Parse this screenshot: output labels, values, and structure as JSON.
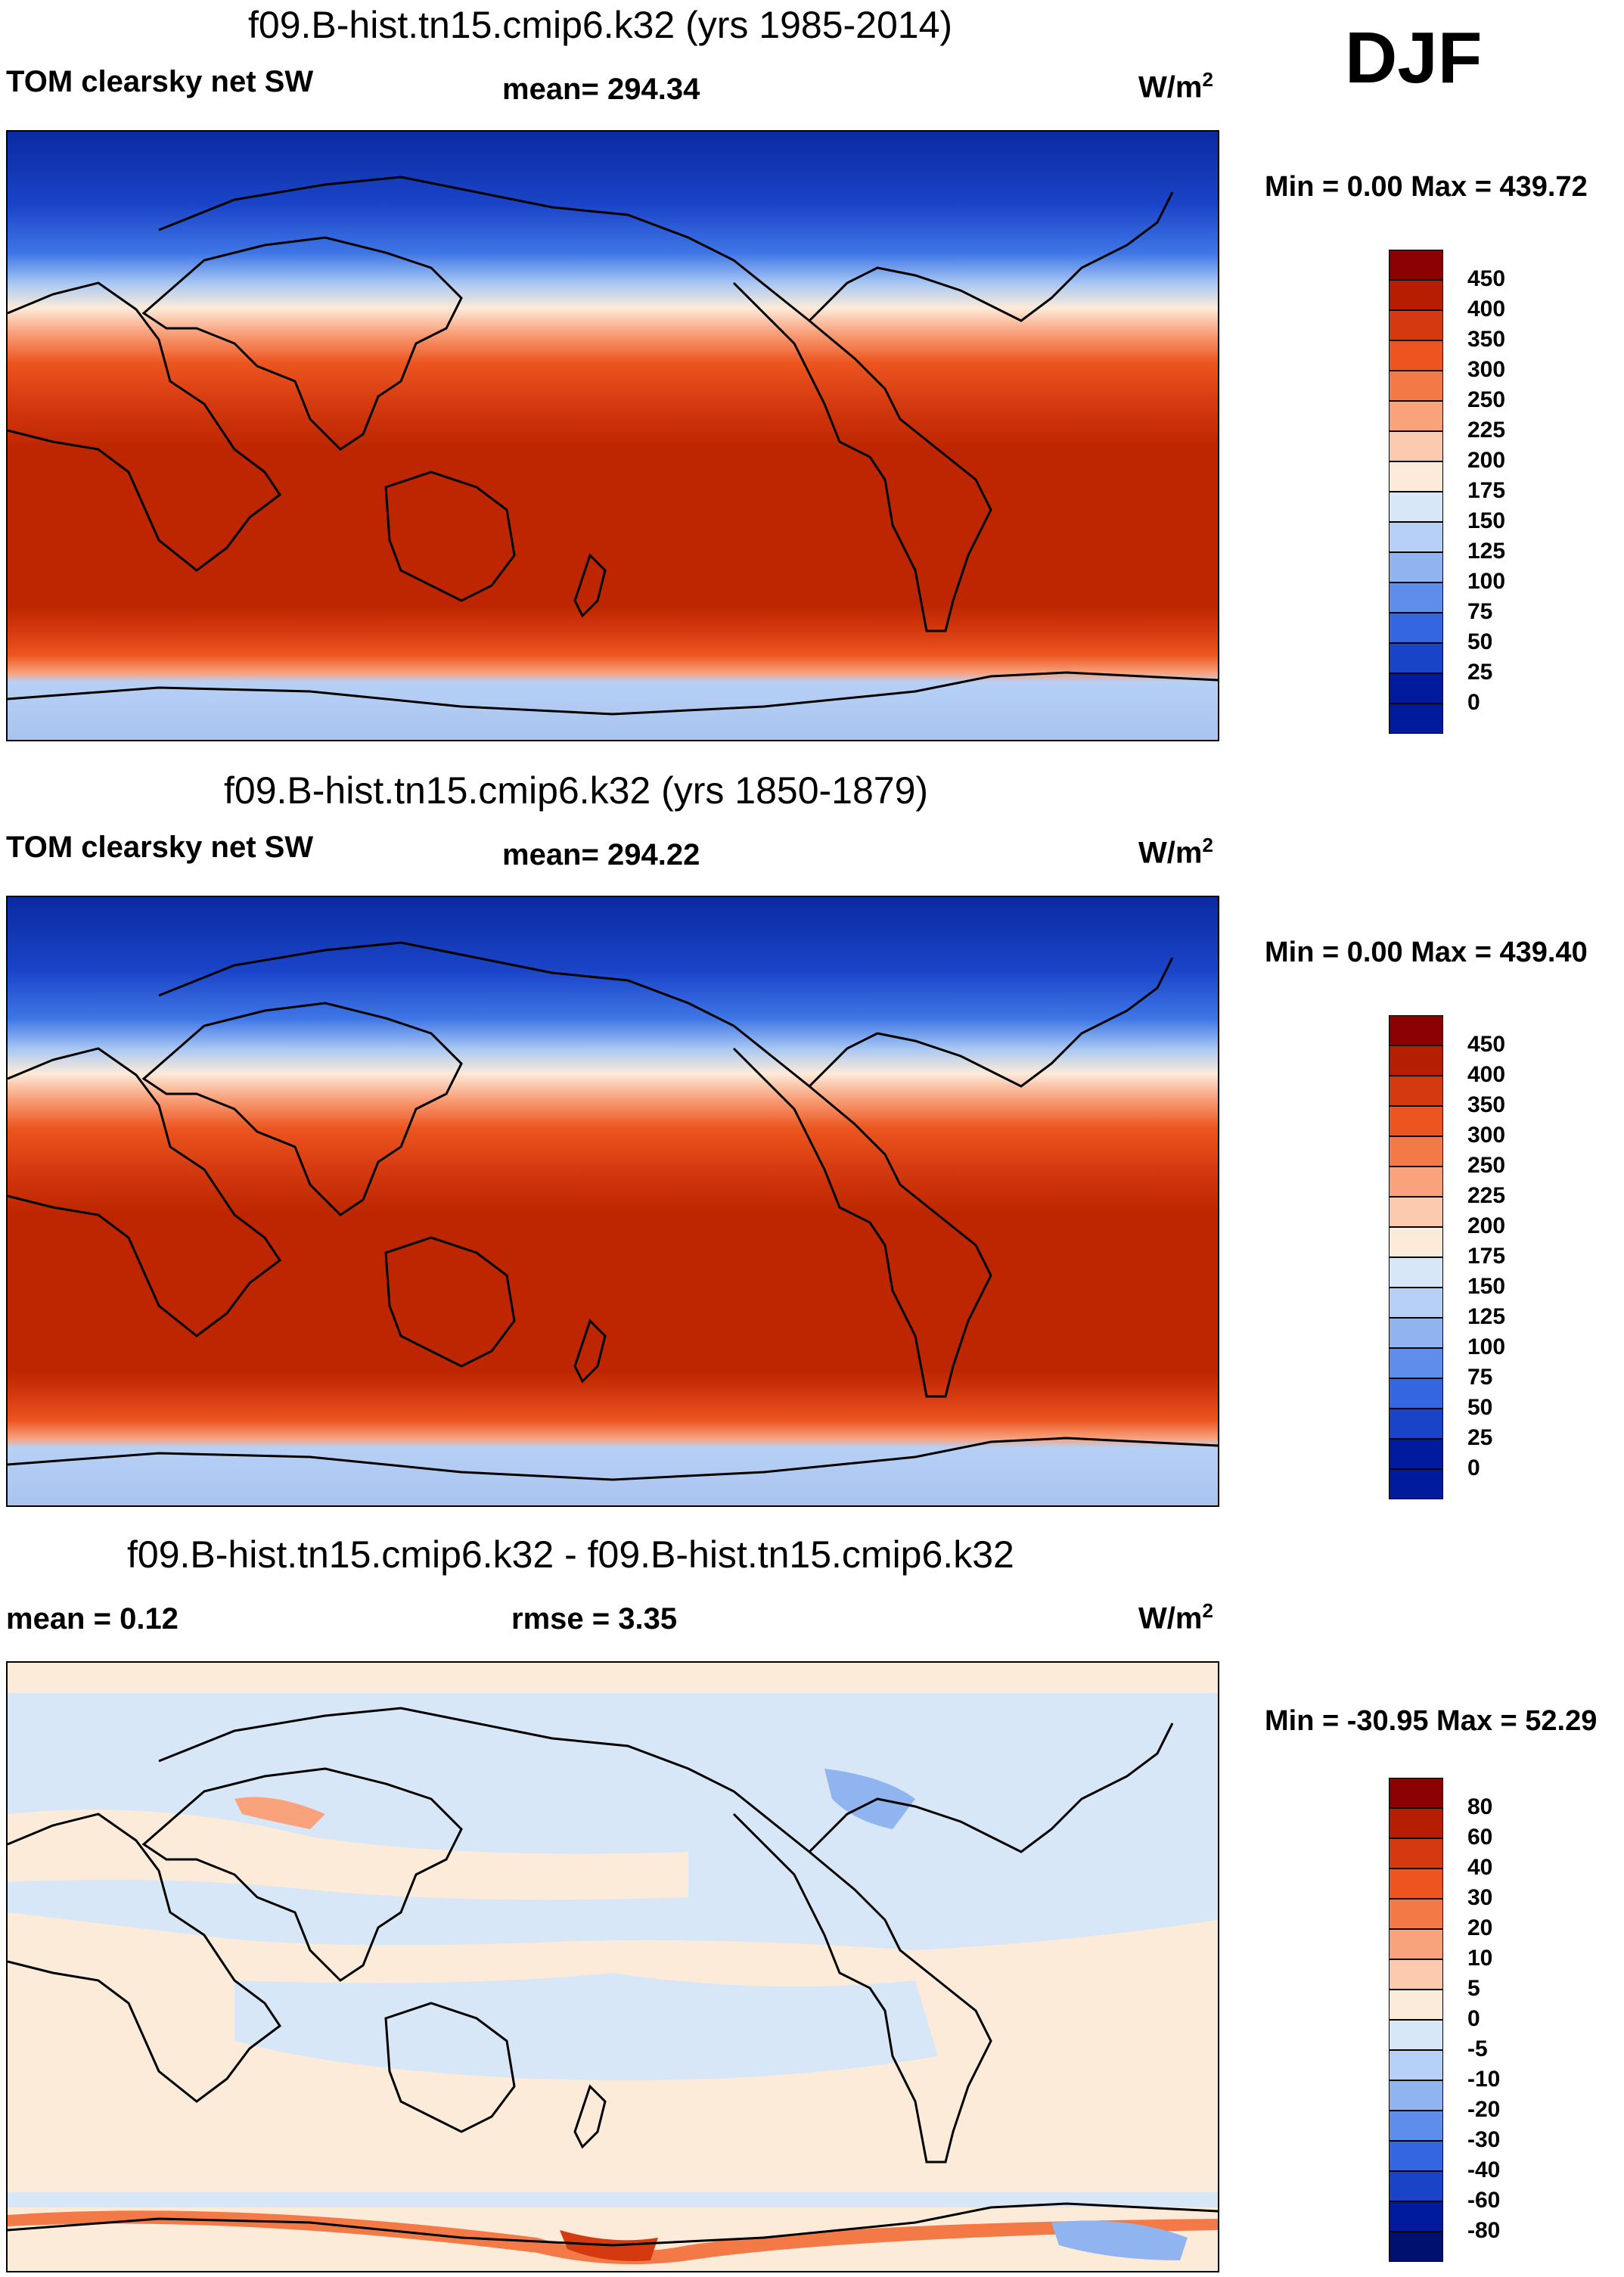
{
  "season": "DJF",
  "panels": [
    {
      "title": "f09.B-hist.tn15.cmip6.k32 (yrs 1985-2014)",
      "left_label": "TOM clearsky net SW",
      "center_label": "mean= 294.34",
      "units": "W/m",
      "units_exp": "2",
      "minmax": "Min =   0.00 Max = 439.72",
      "colorbar_ticks": [
        "450",
        "400",
        "350",
        "300",
        "250",
        "225",
        "200",
        "175",
        "150",
        "125",
        "100",
        "75",
        "50",
        "25",
        "0"
      ],
      "colors": [
        "#8b0000",
        "#b51e00",
        "#d4390f",
        "#ec5520",
        "#f37a47",
        "#f9a27c",
        "#fbc9ad",
        "#fdebd9",
        "#d8e7f8",
        "#b7d0f5",
        "#8fb4f0",
        "#5f8deb",
        "#3366e0",
        "#1a44c8",
        "#001a9e"
      ]
    },
    {
      "title": "f09.B-hist.tn15.cmip6.k32 (yrs 1850-1879)",
      "left_label": "TOM clearsky net SW",
      "center_label": "mean= 294.22",
      "units": "W/m",
      "units_exp": "2",
      "minmax": "Min =   0.00 Max = 439.40",
      "colorbar_ticks": [
        "450",
        "400",
        "350",
        "300",
        "250",
        "225",
        "200",
        "175",
        "150",
        "125",
        "100",
        "75",
        "50",
        "25",
        "0"
      ],
      "colors": [
        "#8b0000",
        "#b51e00",
        "#d4390f",
        "#ec5520",
        "#f37a47",
        "#f9a27c",
        "#fbc9ad",
        "#fdebd9",
        "#d8e7f8",
        "#b7d0f5",
        "#8fb4f0",
        "#5f8deb",
        "#3366e0",
        "#1a44c8",
        "#001a9e"
      ]
    },
    {
      "title": "f09.B-hist.tn15.cmip6.k32 - f09.B-hist.tn15.cmip6.k32",
      "left_label": "mean =   0.12",
      "center_label": "rmse =   3.35",
      "units": "W/m",
      "units_exp": "2",
      "minmax": "Min = -30.95 Max =  52.29",
      "colorbar_ticks": [
        "80",
        "60",
        "40",
        "30",
        "20",
        "10",
        "5",
        "0",
        "-5",
        "-10",
        "-20",
        "-30",
        "-40",
        "-60",
        "-80"
      ],
      "colors": [
        "#8b0000",
        "#b51e00",
        "#d4390f",
        "#ec5520",
        "#f37a47",
        "#f9a27c",
        "#fbc9ad",
        "#fdebd9",
        "#d8e7f8",
        "#b7d0f5",
        "#8fb4f0",
        "#5f8deb",
        "#3366e0",
        "#1a44c8",
        "#001a9e",
        "#00106e"
      ]
    }
  ]
}
